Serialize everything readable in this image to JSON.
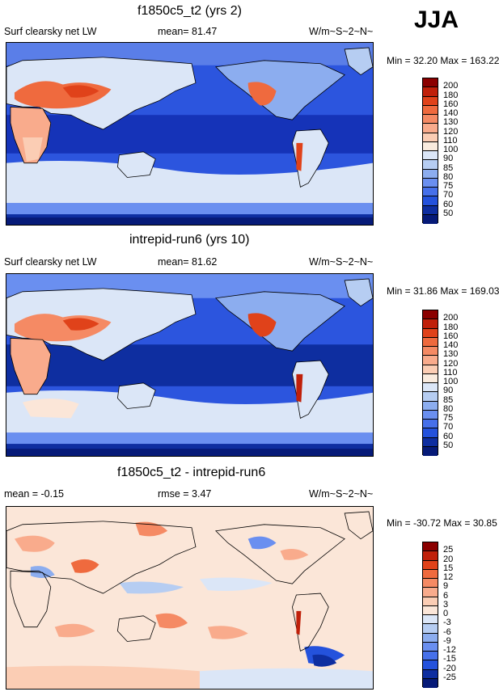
{
  "season": "JJA",
  "panels": [
    {
      "title": "f1850c5_t2 (yrs 2)",
      "left_label": "Surf clearsky net LW",
      "center_label": "mean=  81.47",
      "units": "W/m~S~2~N~",
      "minmax": "Min =  32.20 Max = 163.22",
      "colorbar_labels": [
        "200",
        "180",
        "160",
        "140",
        "130",
        "120",
        "110",
        "100",
        "90",
        "85",
        "80",
        "75",
        "70",
        "60",
        "50"
      ],
      "colorbar_colors": [
        "#8b0000",
        "#c0200a",
        "#e0421a",
        "#ef6a3e",
        "#f58a64",
        "#f9ab8c",
        "#fbcdb4",
        "#f9ebde",
        "#dbe6f7",
        "#b6cdf2",
        "#8cadef",
        "#6a8ff0",
        "#4670ea",
        "#2452dc",
        "#0e2ea0",
        "#061a78"
      ]
    },
    {
      "title": "intrepid-run6 (yrs 10)",
      "left_label": "Surf clearsky net LW",
      "center_label": "mean=  81.62",
      "units": "W/m~S~2~N~",
      "minmax": "Min =  31.86 Max = 169.03",
      "colorbar_labels": [
        "200",
        "180",
        "160",
        "140",
        "130",
        "120",
        "110",
        "100",
        "90",
        "85",
        "80",
        "75",
        "70",
        "60",
        "50"
      ],
      "colorbar_colors": [
        "#8b0000",
        "#c0200a",
        "#e0421a",
        "#ef6a3e",
        "#f58a64",
        "#f9ab8c",
        "#fbcdb4",
        "#f9ebde",
        "#dbe6f7",
        "#b6cdf2",
        "#8cadef",
        "#6a8ff0",
        "#4670ea",
        "#2452dc",
        "#0e2ea0",
        "#061a78"
      ]
    },
    {
      "title": "f1850c5_t2 - intrepid-run6",
      "left_label": "mean =  -0.15",
      "center_label": "rmse =   3.47",
      "units": "W/m~S~2~N~",
      "minmax": "Min = -30.72 Max =  30.85",
      "colorbar_labels": [
        "25",
        "20",
        "15",
        "12",
        "9",
        "6",
        "3",
        "0",
        "-3",
        "-6",
        "-9",
        "-12",
        "-15",
        "-20",
        "-25"
      ],
      "colorbar_colors": [
        "#8b0000",
        "#c0200a",
        "#e0421a",
        "#ef6a3e",
        "#f58a64",
        "#f9ab8c",
        "#fbcdb4",
        "#fbe6d8",
        "#dbe6f7",
        "#b6cdf2",
        "#8cadef",
        "#6a8ff0",
        "#4670ea",
        "#2452dc",
        "#0e2ea0",
        "#061a78"
      ]
    }
  ]
}
